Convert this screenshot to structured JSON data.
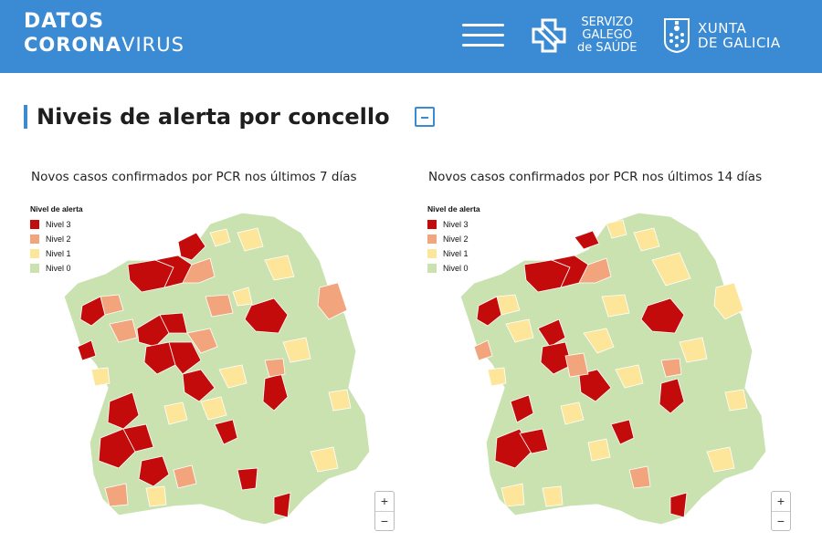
{
  "header": {
    "brand_line1": "DATOS",
    "brand_line2_bold": "CORONA",
    "brand_line2_light": "VIRUS",
    "sgs_line1": "SERVIZO",
    "sgs_line2": "GALEGO",
    "sgs_line3": "de SAÚDE",
    "xunta_line1": "XUNTA",
    "xunta_line2": "DE GALICIA",
    "bg_color": "#3a8ad4"
  },
  "section": {
    "title": "Niveis de alerta por concello",
    "collapse_icon": "minus-square-icon"
  },
  "legend": {
    "title": "Nivel de alerta",
    "items": [
      {
        "label": "Nivel 3",
        "color": "#c40b0b"
      },
      {
        "label": "Nivel 2",
        "color": "#f2a57c"
      },
      {
        "label": "Nivel 1",
        "color": "#fde59a"
      },
      {
        "label": "Nivel 0",
        "color": "#c9e2b0"
      }
    ]
  },
  "maps": [
    {
      "title": "Novos casos confirmados por PCR nos últimos 7 días"
    },
    {
      "title": "Novos casos confirmados por PCR nos últimos 14 días"
    }
  ],
  "zoom": {
    "in_label": "+",
    "out_label": "−"
  }
}
